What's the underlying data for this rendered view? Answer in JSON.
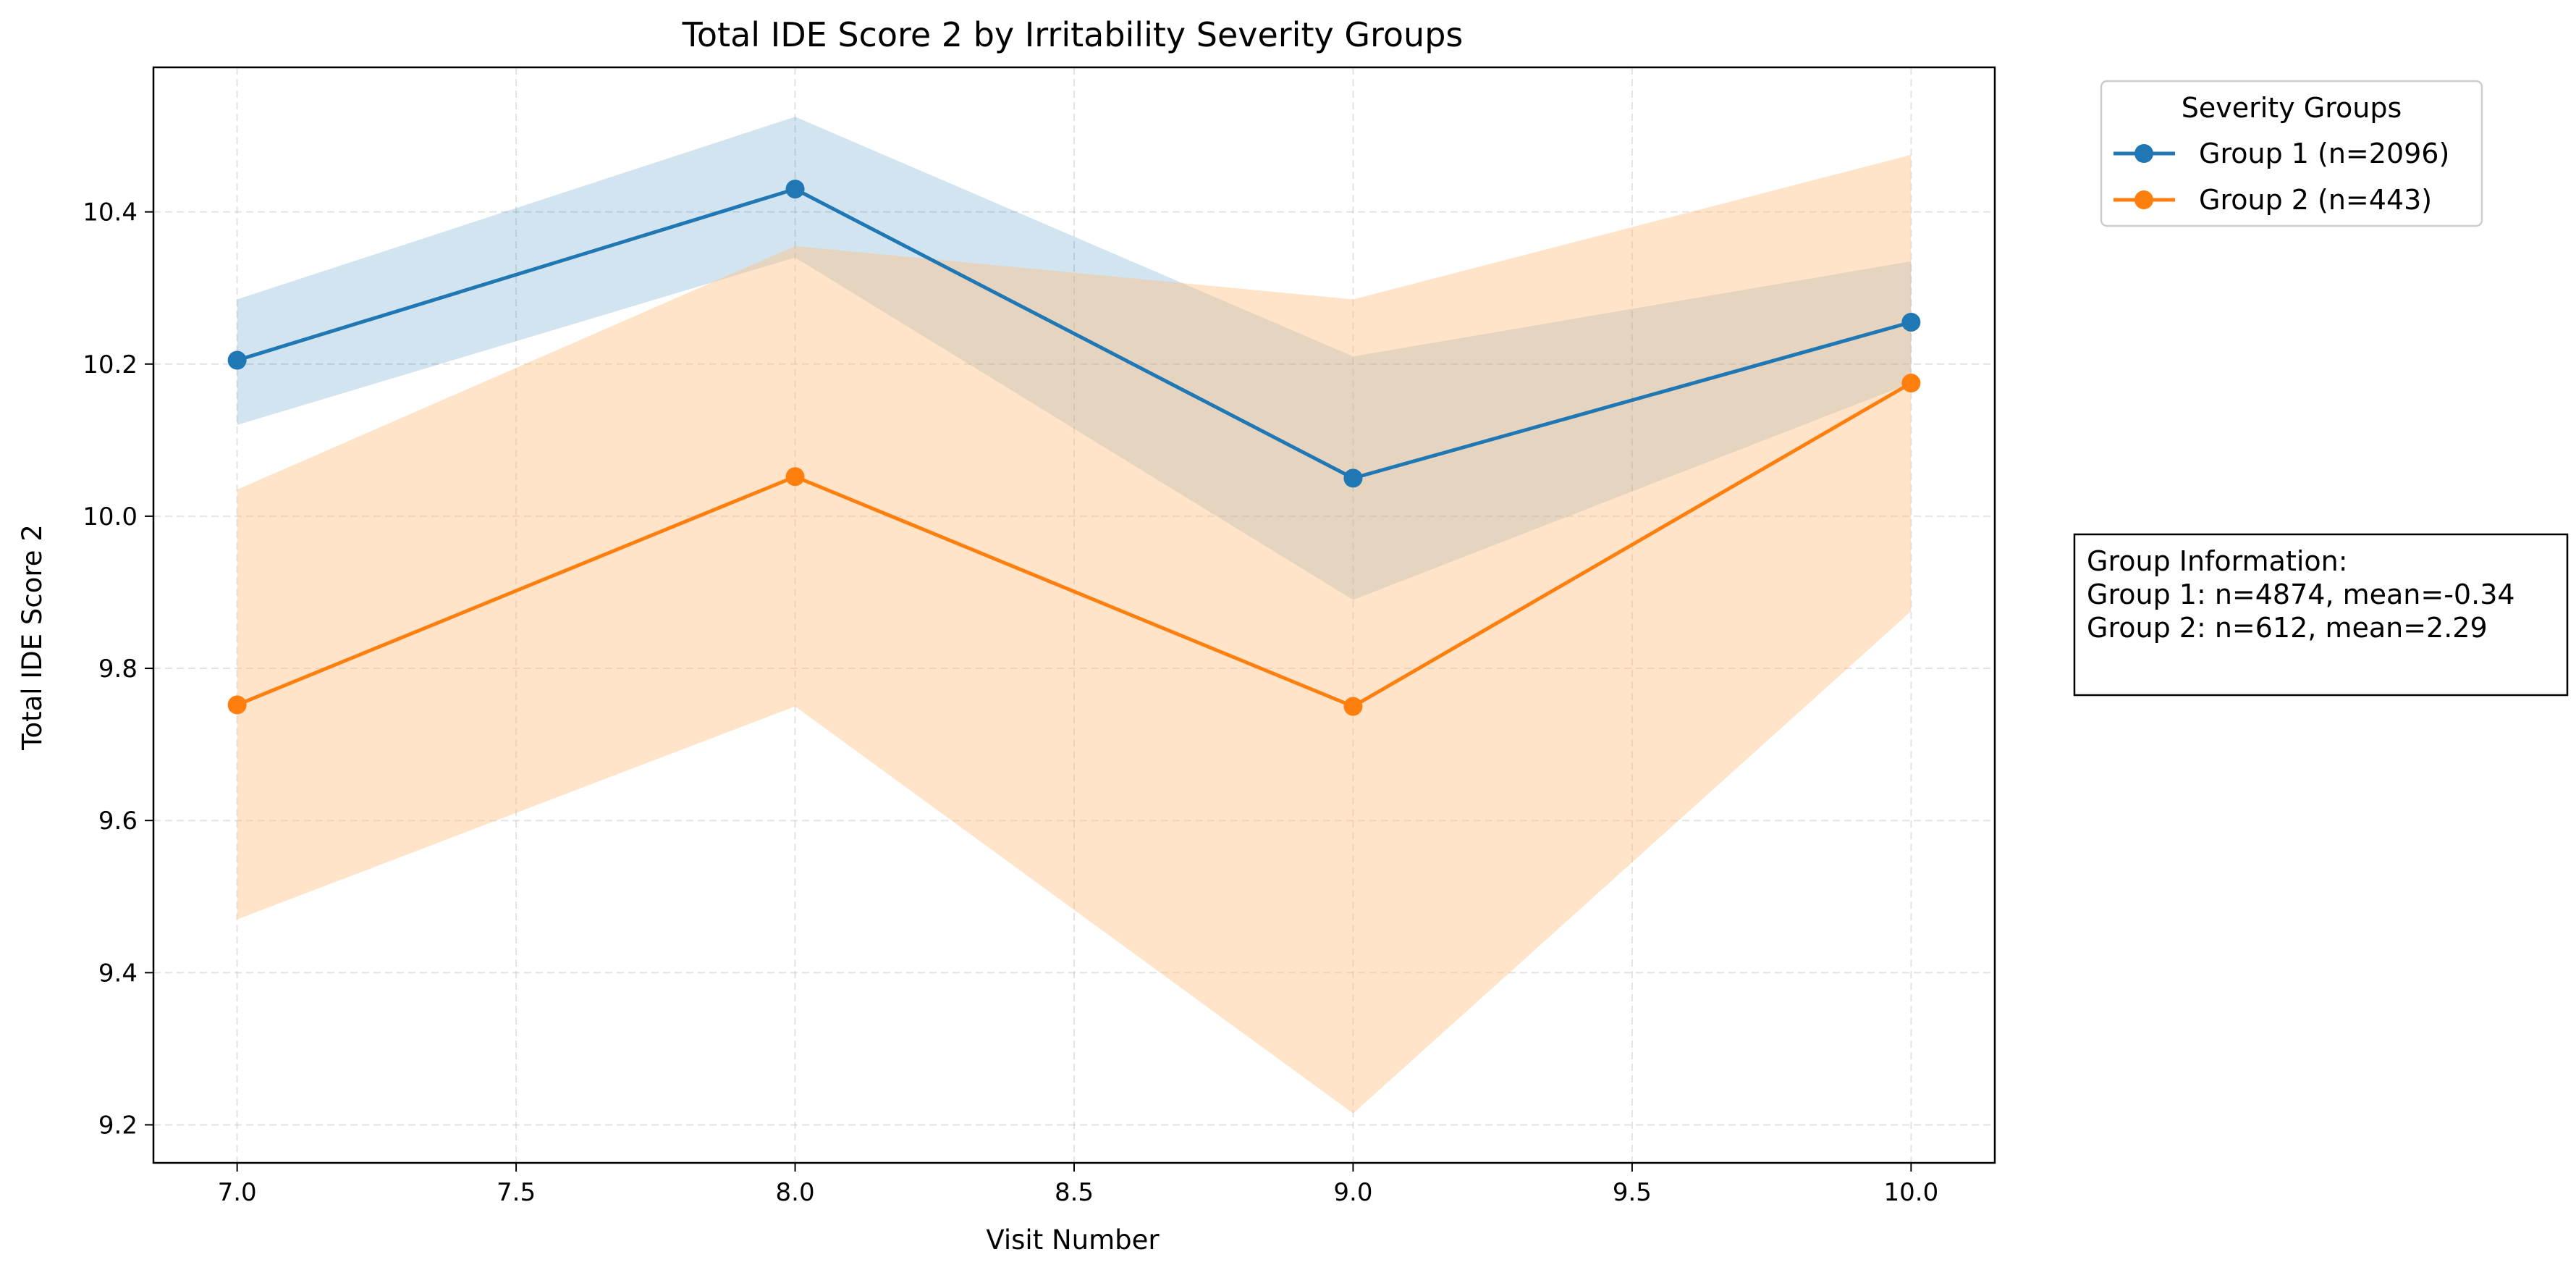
{
  "chart_data": {
    "type": "line",
    "title": "Total IDE Score 2 by Irritability Severity Groups",
    "xlabel": "Visit Number",
    "ylabel": "Total IDE Score 2",
    "xlim": [
      6.85,
      10.15
    ],
    "ylim": [
      9.15,
      10.59
    ],
    "x_ticks": [
      7.0,
      7.5,
      8.0,
      8.5,
      9.0,
      9.5,
      10.0
    ],
    "x_tick_labels": [
      "7.0",
      "7.5",
      "8.0",
      "8.5",
      "9.0",
      "9.5",
      "10.0"
    ],
    "y_ticks": [
      9.2,
      9.4,
      9.6,
      9.8,
      10.0,
      10.2,
      10.4
    ],
    "y_tick_labels": [
      "9.2",
      "9.4",
      "9.6",
      "9.8",
      "10.0",
      "10.2",
      "10.4"
    ],
    "grid": true,
    "legend": {
      "title": "Severity Groups",
      "placement": "outside-upper-right"
    },
    "x": [
      7.0,
      8.0,
      9.0,
      10.0
    ],
    "series": [
      {
        "name": "Group 1 (n=2096)",
        "color": "#1f77b4",
        "band_color": "#1f77b4",
        "values": [
          10.205,
          10.43,
          10.05,
          10.255
        ],
        "lower": [
          10.12,
          10.34,
          9.89,
          10.175
        ],
        "upper": [
          10.285,
          10.525,
          10.21,
          10.335
        ]
      },
      {
        "name": "Group 2 (n=443)",
        "color": "#ff7f0e",
        "band_color": "#ffbb78",
        "values": [
          9.752,
          10.052,
          9.75,
          10.175
        ],
        "lower": [
          9.47,
          9.75,
          9.215,
          9.875
        ],
        "upper": [
          10.035,
          10.355,
          10.285,
          10.475
        ]
      }
    ],
    "annotation": {
      "lines": [
        "Group Information:",
        "Group 1: n=4874, mean=-0.34",
        "Group 2: n=612, mean=2.29"
      ]
    }
  }
}
